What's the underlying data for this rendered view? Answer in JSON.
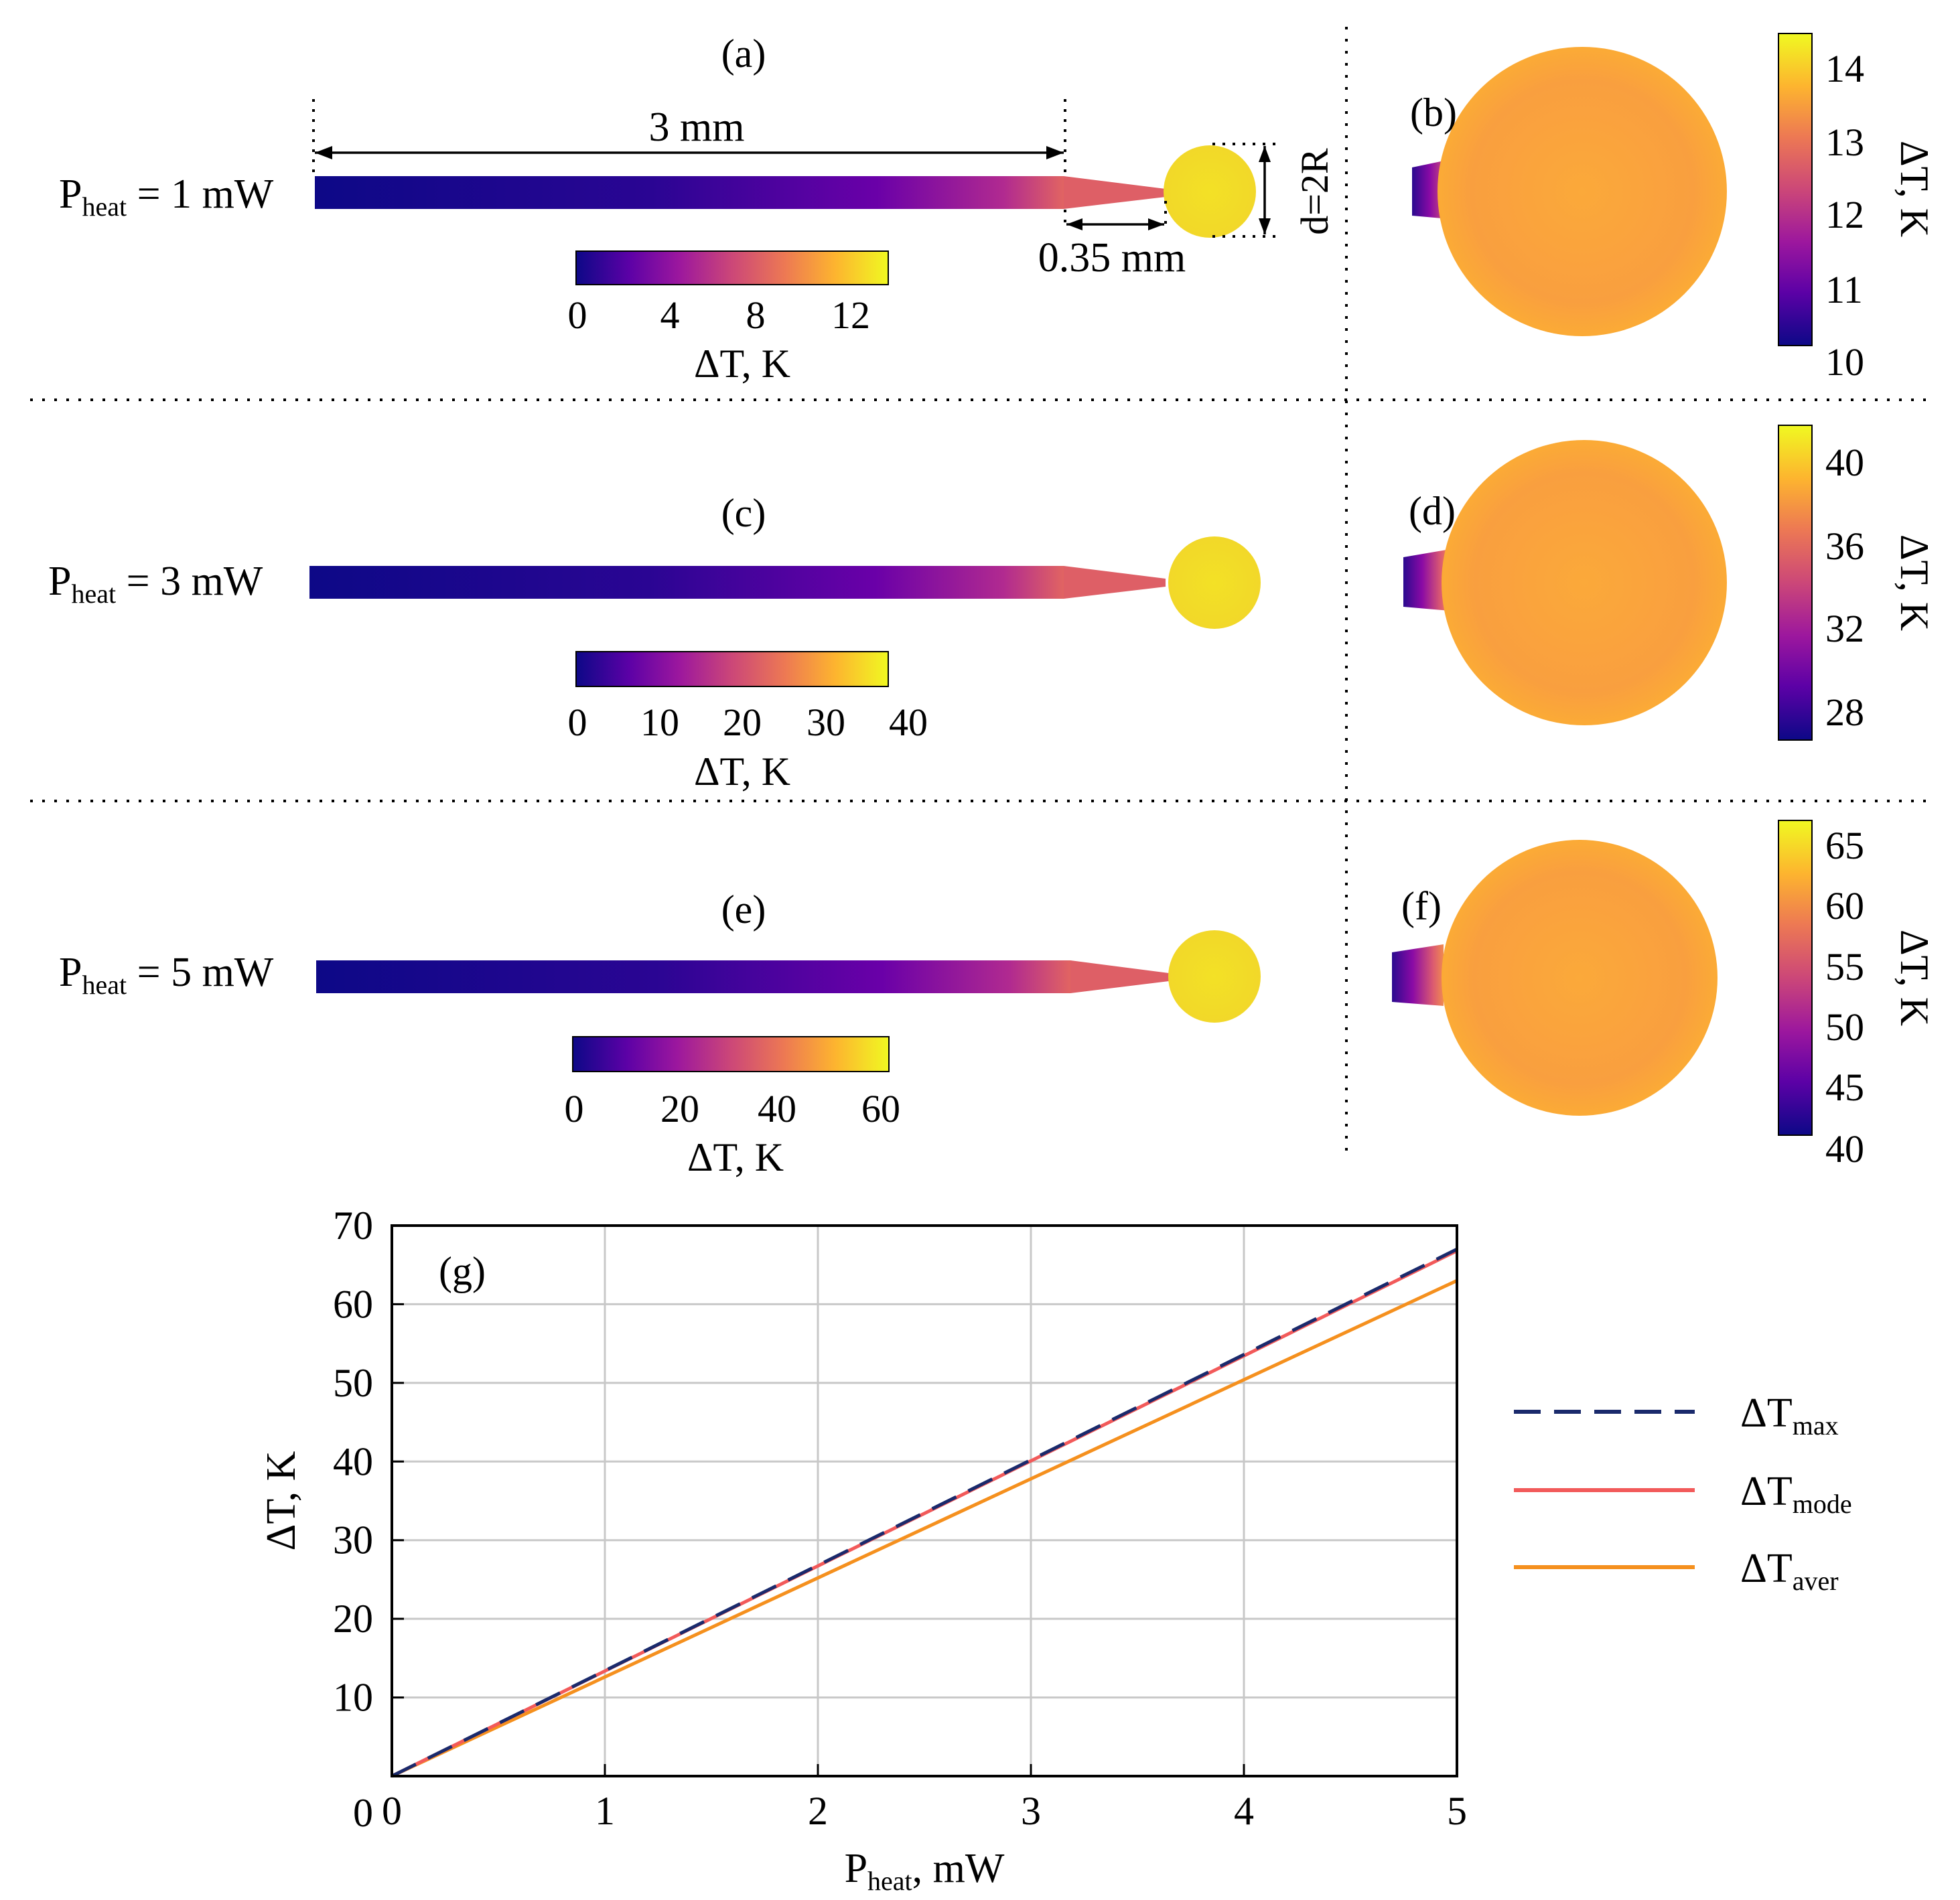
{
  "colors": {
    "plasma_stops": [
      "#0d0887",
      "#5c01a6",
      "#9c179e",
      "#cc4778",
      "#ed7953",
      "#fdb42f",
      "#f0f921"
    ],
    "dT_max": "#1a2a6c",
    "dT_mode": "#f25a5a",
    "dT_aver": "#f5901e",
    "grid": "#c8c8c8",
    "divider": "#000000"
  },
  "panels": {
    "a": {
      "label": "(a)",
      "power_label": {
        "p": "P",
        "sub": "heat",
        "rest": " = 1 mW"
      },
      "dim_length": "3 mm",
      "dim_taper": "0.35 mm",
      "dim_diameter": "d=2R",
      "cbar_ticks": [
        "0",
        "4",
        "8",
        "12"
      ],
      "cbar_label": "ΔT, K"
    },
    "b": {
      "label": "(b)",
      "cbar_ticks": [
        "14",
        "13",
        "12",
        "11",
        "10"
      ],
      "cbar_label": "ΔT, K"
    },
    "c": {
      "label": "(c)",
      "power_label": {
        "p": "P",
        "sub": "heat",
        "rest": " = 3 mW"
      },
      "cbar_ticks": [
        "0",
        "10",
        "20",
        "30",
        "40"
      ],
      "cbar_label": "ΔT, K"
    },
    "d": {
      "label": "(d)",
      "cbar_ticks": [
        "40",
        "36",
        "32",
        "28"
      ],
      "cbar_label": "ΔT, K"
    },
    "e": {
      "label": "(e)",
      "power_label": {
        "p": "P",
        "sub": "heat",
        "rest": " = 5 mW"
      },
      "cbar_ticks": [
        "0",
        "20",
        "40",
        "60"
      ],
      "cbar_label": "ΔT, K"
    },
    "f": {
      "label": "(f)",
      "cbar_ticks": [
        "65",
        "60",
        "55",
        "50",
        "45",
        "40"
      ],
      "cbar_label": "ΔT, K"
    }
  },
  "chart_data": {
    "type": "line",
    "panel_label": "(g)",
    "xlabel": {
      "p": "P",
      "sub": "heat",
      "rest": ", mW"
    },
    "ylabel": "ΔT, K",
    "xlim": [
      0,
      5
    ],
    "ylim": [
      0,
      70
    ],
    "xticks": [
      "0",
      "1",
      "2",
      "3",
      "4",
      "5"
    ],
    "yticks": [
      "0",
      "10",
      "20",
      "30",
      "40",
      "50",
      "60",
      "70"
    ],
    "grid": true,
    "legend_position": "right, outside plot",
    "series": [
      {
        "name": "ΔT",
        "name_sub": "max",
        "style": "dashed",
        "x": [
          0,
          5
        ],
        "y": [
          0,
          67
        ]
      },
      {
        "name": "ΔT",
        "name_sub": "mode",
        "style": "solid",
        "x": [
          0,
          5
        ],
        "y": [
          0,
          66.8
        ]
      },
      {
        "name": "ΔT",
        "name_sub": "aver",
        "style": "solid",
        "x": [
          0,
          5
        ],
        "y": [
          0,
          63
        ]
      }
    ]
  }
}
